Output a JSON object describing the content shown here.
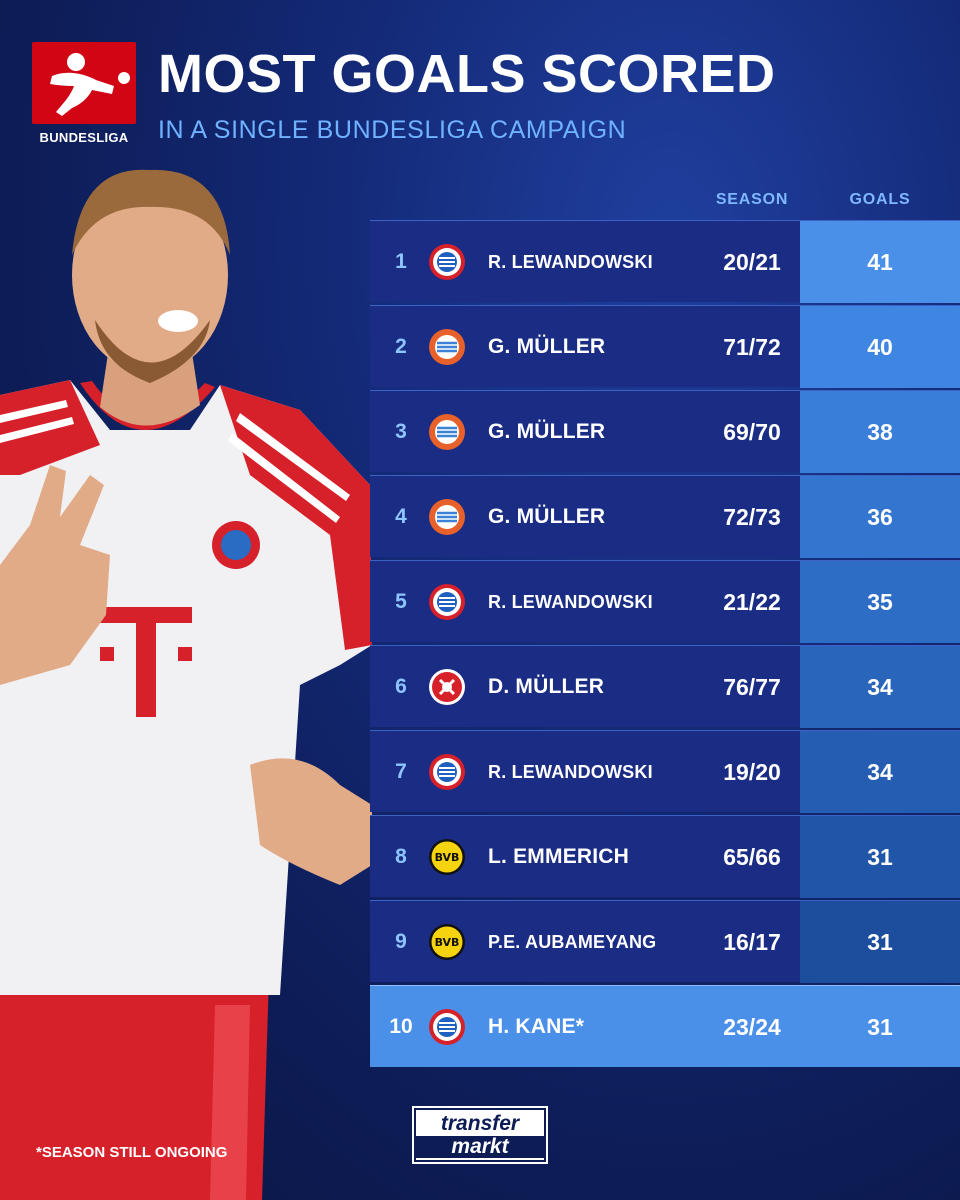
{
  "header": {
    "logo_text": "BUNDESLIGA",
    "title": "MOST GOALS SCORED",
    "subtitle": "IN A SINGLE BUNDESLIGA CAMPAIGN"
  },
  "chart_data": {
    "type": "table",
    "title": "MOST GOALS SCORED",
    "subtitle": "IN A SINGLE BUNDESLIGA CAMPAIGN",
    "columns": [
      "",
      "",
      "",
      "SEASON",
      "GOALS"
    ],
    "rows": [
      {
        "rank": "1",
        "club_badge": "fc-bayern-badge",
        "player": "R. LEWANDOWSKI",
        "season": "20/21",
        "goals": "41"
      },
      {
        "rank": "2",
        "club_badge": "fc-bayern-retro-badge",
        "player": "G. MÜLLER",
        "season": "71/72",
        "goals": "40"
      },
      {
        "rank": "3",
        "club_badge": "fc-bayern-retro-badge",
        "player": "G. MÜLLER",
        "season": "69/70",
        "goals": "38"
      },
      {
        "rank": "4",
        "club_badge": "fc-bayern-retro-badge",
        "player": "G. MÜLLER",
        "season": "72/73",
        "goals": "36"
      },
      {
        "rank": "5",
        "club_badge": "fc-bayern-badge",
        "player": "R. LEWANDOWSKI",
        "season": "21/22",
        "goals": "35"
      },
      {
        "rank": "6",
        "club_badge": "fc-koeln-badge",
        "player": "D. MÜLLER",
        "season": "76/77",
        "goals": "34"
      },
      {
        "rank": "7",
        "club_badge": "fc-bayern-badge",
        "player": "R. LEWANDOWSKI",
        "season": "19/20",
        "goals": "34"
      },
      {
        "rank": "8",
        "club_badge": "bvb-badge",
        "player": "L. EMMERICH",
        "season": "65/66",
        "goals": "31"
      },
      {
        "rank": "9",
        "club_badge": "bvb-badge",
        "player": "P.E. AUBAMEYANG",
        "season": "16/17",
        "goals": "31"
      },
      {
        "rank": "10",
        "club_badge": "fc-bayern-badge",
        "player": "H. KANE*",
        "season": "23/24",
        "goals": "31"
      }
    ]
  },
  "footnote": "*SEASON STILL ONGOING",
  "brand": {
    "line1": "transfer",
    "line2": "markt"
  },
  "colors": {
    "background": "#142a78",
    "row": "#1a2c84",
    "highlight": "#4a8fe8",
    "accent_text": "#6fb2ff",
    "bundesliga_red": "#d20515"
  }
}
